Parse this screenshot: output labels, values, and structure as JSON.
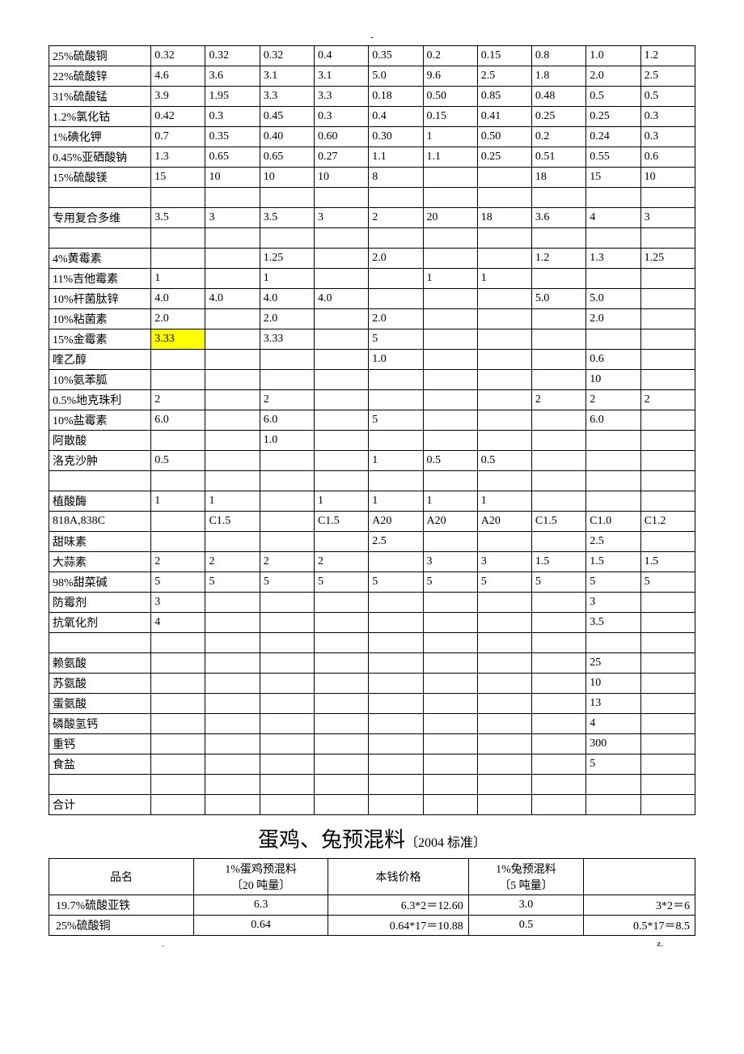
{
  "dash": "-",
  "table1": {
    "columns_count": 11,
    "highlight": {
      "row": 14,
      "col": 1
    },
    "rows": [
      [
        "25%硫酸铜",
        "0.32",
        "0.32",
        "0.32",
        "0.4",
        "0.35",
        "0.2",
        "0.15",
        "0.8",
        "1.0",
        "1.2"
      ],
      [
        "22%硫酸锌",
        "4.6",
        "3.6",
        "3.1",
        "3.1",
        "5.0",
        "9.6",
        "2.5",
        "1.8",
        "2.0",
        "2.5"
      ],
      [
        "31%硫酸锰",
        "3.9",
        "1.95",
        "3.3",
        "3.3",
        "0.18",
        "0.50",
        "0.85",
        "0.48",
        "0.5",
        "0.5"
      ],
      [
        "1.2%氯化钴",
        "0.42",
        "0.3",
        "0.45",
        "0.3",
        "0.4",
        "0.15",
        "0.41",
        "0.25",
        "0.25",
        "0.3"
      ],
      [
        "1%碘化钾",
        "0.7",
        "0.35",
        "0.40",
        "0.60",
        "0.30",
        "1",
        "0.50",
        "0.2",
        "0.24",
        "0.3"
      ],
      [
        "0.45%亚硒酸钠",
        "1.3",
        "0.65",
        "0.65",
        "0.27",
        "1.1",
        "1.1",
        "0.25",
        "0.51",
        "0.55",
        "0.6"
      ],
      [
        "15%硫酸镁",
        "15",
        "10",
        "10",
        "10",
        "8",
        "",
        "",
        "18",
        "15",
        "10"
      ],
      [
        "",
        "",
        "",
        "",
        "",
        "",
        "",
        "",
        "",
        "",
        ""
      ],
      [
        "专用复合多维",
        "3.5",
        "3",
        "3.5",
        "3",
        "2",
        "20",
        "18",
        "3.6",
        "4",
        "3"
      ],
      [
        "",
        "",
        "",
        "",
        "",
        "",
        "",
        "",
        "",
        "",
        ""
      ],
      [
        "4%黄霉素",
        "",
        "",
        "1.25",
        "",
        "2.0",
        "",
        "",
        "1.2",
        "1.3",
        "1.25"
      ],
      [
        "11%吉他霉素",
        "1",
        "",
        "1",
        "",
        "",
        "1",
        "1",
        "",
        "",
        ""
      ],
      [
        "10%杆菌肽锌",
        "4.0",
        "4.0",
        "4.0",
        "4.0",
        "",
        "",
        "",
        "5.0",
        "5.0",
        ""
      ],
      [
        "10%粘菌素",
        "2.0",
        "",
        "2.0",
        "",
        "2.0",
        "",
        "",
        "",
        "2.0",
        ""
      ],
      [
        "15%金霉素",
        "3.33",
        "",
        "3.33",
        "",
        "5",
        "",
        "",
        "",
        "",
        ""
      ],
      [
        "喹乙醇",
        "",
        "",
        "",
        "",
        "1.0",
        "",
        "",
        "",
        "0.6",
        ""
      ],
      [
        "10%氨苯胍",
        "",
        "",
        "",
        "",
        "",
        "",
        "",
        "",
        "10",
        ""
      ],
      [
        "0.5%地克珠利",
        "2",
        "",
        "2",
        "",
        "",
        "",
        "",
        "2",
        "2",
        "2"
      ],
      [
        "10%盐霉素",
        "6.0",
        "",
        "6.0",
        "",
        "5",
        "",
        "",
        "",
        "6.0",
        ""
      ],
      [
        "阿散酸",
        "",
        "",
        "1.0",
        "",
        "",
        "",
        "",
        "",
        "",
        ""
      ],
      [
        "洛克沙肿",
        "0.5",
        "",
        "",
        "",
        "1",
        "0.5",
        "0.5",
        "",
        "",
        ""
      ],
      [
        "",
        "",
        "",
        "",
        "",
        "",
        "",
        "",
        "",
        "",
        ""
      ],
      [
        "植酸酶",
        "1",
        "1",
        "",
        "1",
        "1",
        "1",
        "1",
        "",
        "",
        ""
      ],
      [
        "818A,838C",
        "",
        "C1.5",
        "",
        "C1.5",
        "A20",
        "A20",
        "A20",
        "C1.5",
        "C1.0",
        "C1.2"
      ],
      [
        "甜味素",
        "",
        "",
        "",
        "",
        "2.5",
        "",
        "",
        "",
        "2.5",
        ""
      ],
      [
        "大蒜素",
        "2",
        "2",
        "2",
        "2",
        "",
        "3",
        "3",
        "1.5",
        "1.5",
        "1.5"
      ],
      [
        "98%甜菜碱",
        "5",
        "5",
        "5",
        "5",
        "5",
        "5",
        "5",
        "5",
        "5",
        "5"
      ],
      [
        "防霉剂",
        "3",
        "",
        "",
        "",
        "",
        "",
        "",
        "",
        "3",
        ""
      ],
      [
        "抗氧化剂",
        "4",
        "",
        "",
        "",
        "",
        "",
        "",
        "",
        "3.5",
        ""
      ],
      [
        "",
        "",
        "",
        "",
        "",
        "",
        "",
        "",
        "",
        "",
        ""
      ],
      [
        "赖氨酸",
        "",
        "",
        "",
        "",
        "",
        "",
        "",
        "",
        "25",
        ""
      ],
      [
        "苏氨酸",
        "",
        "",
        "",
        "",
        "",
        "",
        "",
        "",
        "10",
        ""
      ],
      [
        "蛋氨酸",
        "",
        "",
        "",
        "",
        "",
        "",
        "",
        "",
        "13",
        ""
      ],
      [
        "磷酸氢钙",
        "",
        "",
        "",
        "",
        "",
        "",
        "",
        "",
        "4",
        ""
      ],
      [
        "重钙",
        "",
        "",
        "",
        "",
        "",
        "",
        "",
        "",
        "300",
        ""
      ],
      [
        "食盐",
        "",
        "",
        "",
        "",
        "",
        "",
        "",
        "",
        "5",
        ""
      ],
      [
        "",
        "",
        "",
        "",
        "",
        "",
        "",
        "",
        "",
        "",
        ""
      ],
      [
        "合计",
        "",
        "",
        "",
        "",
        "",
        "",
        "",
        "",
        "",
        ""
      ]
    ]
  },
  "title": {
    "main": "蛋鸡、兔预混料",
    "sub": "〔2004 标准〕"
  },
  "table2": {
    "header": [
      {
        "label": "品名",
        "sub": ""
      },
      {
        "label": "1%蛋鸡预混料",
        "sub": "〔20 吨量〕"
      },
      {
        "label": "本钱价格",
        "sub": ""
      },
      {
        "label": "1%兔预混料",
        "sub": "〔5 吨量〕"
      },
      {
        "label": "",
        "sub": ""
      }
    ],
    "rows": [
      [
        "19.7%硫酸亚铁",
        "6.3",
        "6.3*2＝12.60",
        "3.0",
        "3*2＝6"
      ],
      [
        "25%硫酸铜",
        "0.64",
        "0.64*17＝10.88",
        "0.5",
        "0.5*17＝8.5"
      ]
    ]
  },
  "footer": {
    "left": ".",
    "right": "z."
  },
  "styling": {
    "font_family": "SimSun",
    "background_color": "#ffffff",
    "text_color": "#000000",
    "border_color": "#000000",
    "highlight_color": "#ffff00",
    "table_font_size": 14,
    "title_font_size": 26,
    "title_sub_font_size": 16,
    "cell_padding": "2px 4px",
    "t1_first_col_width": 120,
    "t1_other_col_width": 60
  }
}
